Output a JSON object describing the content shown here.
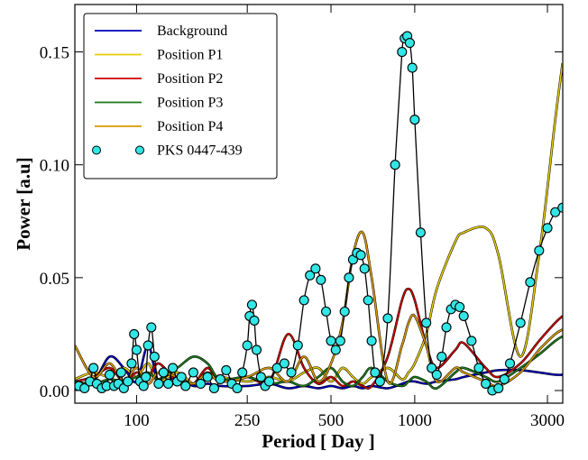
{
  "chart_data": {
    "type": "line",
    "xlabel": "Period [ Day ]",
    "ylabel": "Power [a.u]",
    "xscale": "log",
    "xlim": [
      60,
      3405
    ],
    "ylim": [
      -0.0056,
      0.171
    ],
    "xticks": [
      100,
      250,
      500,
      1000,
      3000
    ],
    "yticks": [
      {
        "value": 0,
        "label": "0.00"
      },
      {
        "value": 0.05,
        "label": "0.05"
      },
      {
        "value": 0.1,
        "label": "0.10"
      },
      {
        "value": 0.15,
        "label": "0.15"
      }
    ],
    "legend": "upper left",
    "series": [
      {
        "name": "Background",
        "color": "#0000bb",
        "style": "line",
        "x": [
          60,
          70,
          80,
          90,
          100,
          110,
          120,
          140,
          160,
          180,
          200,
          250,
          300,
          350,
          400,
          450,
          500,
          550,
          600,
          650,
          700,
          800,
          900,
          950,
          1000,
          1100,
          1200,
          1400,
          1500,
          1800,
          2000,
          2400,
          2800,
          3200,
          3400
        ],
        "values": [
          0.003,
          0.004,
          0.015,
          0.01,
          0.004,
          0.02,
          0.004,
          0.006,
          0.002,
          0.003,
          0.002,
          0.002,
          0.003,
          0.001,
          0.002,
          0.001,
          0.002,
          0.001,
          0.002,
          0.001,
          0.002,
          0.001,
          0.003,
          0.004,
          0.004,
          0.003,
          0.004,
          0.005,
          0.006,
          0.008,
          0.009,
          0.009,
          0.008,
          0.007,
          0.007
        ]
      },
      {
        "name": "Position P1",
        "color": "#e6cc00",
        "style": "line",
        "x": [
          60,
          70,
          80,
          90,
          100,
          110,
          120,
          140,
          160,
          180,
          200,
          250,
          300,
          350,
          400,
          450,
          500,
          550,
          600,
          650,
          700,
          800,
          900,
          950,
          1000,
          1100,
          1200,
          1400,
          1500,
          1800,
          2000,
          2400,
          2800,
          3200,
          3400
        ],
        "values": [
          0.005,
          0.008,
          0.006,
          0.01,
          0.006,
          0.012,
          0.004,
          0.008,
          0.003,
          0.005,
          0.006,
          0.004,
          0.006,
          0.004,
          0.008,
          0.01,
          0.004,
          0.01,
          0.006,
          0.003,
          0.006,
          0.01,
          0.005,
          0.008,
          0.012,
          0.025,
          0.045,
          0.066,
          0.07,
          0.072,
          0.06,
          0.015,
          0.06,
          0.12,
          0.145
        ]
      },
      {
        "name": "Position P2",
        "color": "#cc0000",
        "style": "line",
        "x": [
          60,
          70,
          80,
          90,
          100,
          110,
          120,
          140,
          160,
          180,
          200,
          250,
          300,
          350,
          400,
          450,
          500,
          550,
          600,
          650,
          700,
          800,
          900,
          950,
          1000,
          1100,
          1200,
          1400,
          1500,
          1800,
          2000,
          2400,
          2800,
          3200,
          3400
        ],
        "values": [
          0.004,
          0.006,
          0.01,
          0.004,
          0.008,
          0.006,
          0.012,
          0.004,
          0.003,
          0.01,
          0.004,
          0.006,
          0.004,
          0.025,
          0.01,
          0.003,
          0.006,
          0.002,
          0.004,
          0.002,
          0.002,
          0.015,
          0.04,
          0.045,
          0.04,
          0.02,
          0.01,
          0.018,
          0.021,
          0.01,
          0.006,
          0.012,
          0.022,
          0.03,
          0.033
        ]
      },
      {
        "name": "Position P3",
        "color": "#1a7a1a",
        "style": "line",
        "x": [
          60,
          70,
          80,
          90,
          100,
          110,
          120,
          140,
          160,
          180,
          200,
          250,
          300,
          350,
          400,
          450,
          500,
          550,
          600,
          650,
          700,
          800,
          900,
          950,
          1000,
          1100,
          1200,
          1400,
          1500,
          1800,
          2000,
          2400,
          2800,
          3200,
          3400
        ],
        "values": [
          0.004,
          0.003,
          0.005,
          0.004,
          0.006,
          0.008,
          0.005,
          0.01,
          0.015,
          0.012,
          0.005,
          0.006,
          0.003,
          0.004,
          0.002,
          0.006,
          0.01,
          0.004,
          0.002,
          0.006,
          0.01,
          0.004,
          0.002,
          0.004,
          0.006,
          0.004,
          0.001,
          0.008,
          0.01,
          0.006,
          0.004,
          0.01,
          0.016,
          0.022,
          0.024
        ]
      },
      {
        "name": "Position P4",
        "color": "#d99a00",
        "style": "line",
        "x": [
          60,
          70,
          80,
          90,
          100,
          110,
          120,
          140,
          160,
          180,
          200,
          250,
          300,
          350,
          400,
          450,
          500,
          550,
          600,
          650,
          700,
          800,
          900,
          950,
          1000,
          1100,
          1200,
          1400,
          1500,
          1800,
          2000,
          2400,
          2800,
          3200,
          3400
        ],
        "values": [
          0.02,
          0.006,
          0.012,
          0.004,
          0.01,
          0.003,
          0.008,
          0.006,
          0.003,
          0.008,
          0.004,
          0.006,
          0.01,
          0.004,
          0.015,
          0.004,
          0.012,
          0.03,
          0.06,
          0.07,
          0.05,
          0.004,
          0.02,
          0.03,
          0.033,
          0.02,
          0.004,
          0.01,
          0.008,
          0.004,
          0.002,
          0.008,
          0.018,
          0.025,
          0.027
        ]
      },
      {
        "name": "PKS 0447-439",
        "color": "#33e6e6",
        "style": "marker",
        "x": [
          62,
          65,
          68,
          70,
          72,
          75,
          78,
          80,
          83,
          86,
          88,
          90,
          93,
          96,
          98,
          100,
          103,
          106,
          108,
          110,
          113,
          116,
          120,
          125,
          130,
          135,
          140,
          145,
          150,
          160,
          170,
          180,
          190,
          200,
          210,
          220,
          230,
          240,
          250,
          255,
          260,
          265,
          270,
          280,
          290,
          300,
          320,
          340,
          360,
          380,
          400,
          420,
          440,
          460,
          480,
          500,
          520,
          540,
          560,
          580,
          600,
          620,
          640,
          660,
          680,
          700,
          720,
          750,
          800,
          850,
          900,
          920,
          940,
          960,
          980,
          1000,
          1050,
          1100,
          1150,
          1200,
          1250,
          1300,
          1350,
          1400,
          1450,
          1500,
          1600,
          1700,
          1800,
          1900,
          2000,
          2100,
          2200,
          2400,
          2600,
          2800,
          3000,
          3200,
          3400
        ],
        "values": [
          0.002,
          0.001,
          0.004,
          0.01,
          0.003,
          0.001,
          0.002,
          0.007,
          0.002,
          0.003,
          0.008,
          0.001,
          0.004,
          0.012,
          0.025,
          0.018,
          0.004,
          0.002,
          0.006,
          0.02,
          0.028,
          0.015,
          0.003,
          0.008,
          0.003,
          0.01,
          0.004,
          0.006,
          0.002,
          0.008,
          0.003,
          0.006,
          0.001,
          0.005,
          0.009,
          0.003,
          0.001,
          0.008,
          0.02,
          0.033,
          0.038,
          0.031,
          0.018,
          0.006,
          0.002,
          0.004,
          0.01,
          0.012,
          0.008,
          0.02,
          0.04,
          0.051,
          0.054,
          0.049,
          0.035,
          0.022,
          0.018,
          0.022,
          0.035,
          0.05,
          0.058,
          0.061,
          0.06,
          0.054,
          0.04,
          0.022,
          0.008,
          0.004,
          0.032,
          0.1,
          0.15,
          0.156,
          0.157,
          0.154,
          0.143,
          0.12,
          0.07,
          0.03,
          0.01,
          0.007,
          0.015,
          0.028,
          0.036,
          0.038,
          0.037,
          0.033,
          0.022,
          0.01,
          0.003,
          0.0,
          0.001,
          0.005,
          0.012,
          0.03,
          0.048,
          0.062,
          0.072,
          0.079,
          0.081
        ]
      }
    ]
  }
}
